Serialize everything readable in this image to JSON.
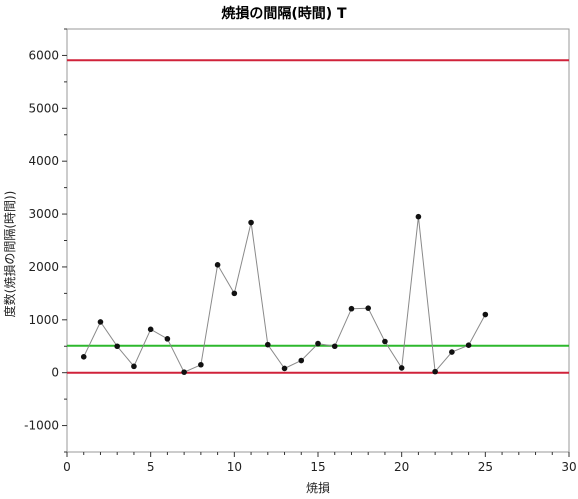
{
  "chart_data": {
    "type": "line",
    "title": "焼損の間隔(時間)  T",
    "xlabel": "焼損",
    "ylabel": "度数(焼損の間隔(時間))",
    "xlim": [
      0,
      30
    ],
    "ylim": [
      -1500,
      6500
    ],
    "xticks": [
      0,
      5,
      10,
      15,
      20,
      25,
      30
    ],
    "yticks": [
      -1000,
      0,
      1000,
      2000,
      3000,
      4000,
      5000,
      6000
    ],
    "x": [
      1,
      2,
      3,
      4,
      5,
      6,
      7,
      8,
      9,
      10,
      11,
      12,
      13,
      14,
      15,
      16,
      17,
      18,
      19,
      20,
      21,
      22,
      23,
      24,
      25
    ],
    "values": [
      300,
      960,
      500,
      120,
      820,
      640,
      10,
      150,
      2040,
      1500,
      2840,
      530,
      80,
      230,
      550,
      500,
      1210,
      1220,
      590,
      90,
      2950,
      20,
      390,
      520,
      1100
    ],
    "reference_lines": [
      {
        "kind": "ucl",
        "value": 5910,
        "color": "#d0223a"
      },
      {
        "kind": "center",
        "value": 510,
        "color": "#2db82d"
      },
      {
        "kind": "lcl",
        "value": 0,
        "color": "#d0223a"
      }
    ],
    "colors": {
      "line": "#8a8a8a",
      "marker": "#111111"
    },
    "grid": false
  }
}
